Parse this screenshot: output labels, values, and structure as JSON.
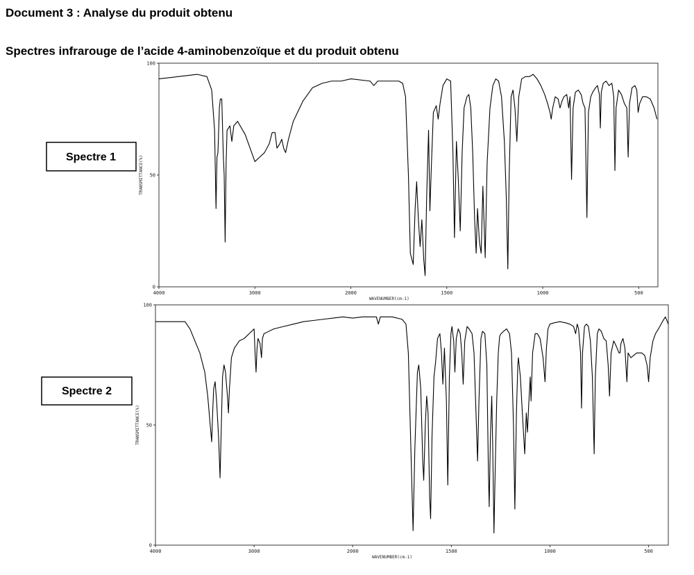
{
  "header": {
    "title": "Document 3 : Analyse du produit obtenu",
    "subtitle": "Spectres infrarouge de l’acide 4-aminobenzoïque et du produit obtenu"
  },
  "chart_data": [
    {
      "type": "line",
      "label": "Spectre 1",
      "xlabel": "WAVENUMBER(cm-1)",
      "ylabel": "TRANSMITTANCE(%)",
      "color": "#000000",
      "xlim": [
        4000,
        400
      ],
      "x_scale_break": 2000,
      "xticks": [
        4000,
        3000,
        2000,
        1500,
        1000,
        500
      ],
      "ylim": [
        0,
        100
      ],
      "yticks": [
        0,
        50,
        100
      ],
      "x": [
        4000,
        3800,
        3600,
        3500,
        3450,
        3420,
        3405,
        3395,
        3385,
        3370,
        3360,
        3345,
        3330,
        3320,
        3310,
        3300,
        3290,
        3260,
        3240,
        3220,
        3180,
        3100,
        3000,
        2950,
        2900,
        2850,
        2820,
        2790,
        2770,
        2740,
        2720,
        2700,
        2680,
        2650,
        2600,
        2500,
        2400,
        2300,
        2200,
        2100,
        2000,
        1900,
        1880,
        1860,
        1800,
        1750,
        1730,
        1715,
        1700,
        1690,
        1675,
        1665,
        1657,
        1648,
        1639,
        1630,
        1620,
        1613,
        1605,
        1595,
        1588,
        1580,
        1570,
        1555,
        1545,
        1535,
        1520,
        1500,
        1480,
        1468,
        1460,
        1450,
        1440,
        1430,
        1420,
        1410,
        1395,
        1385,
        1375,
        1365,
        1355,
        1347,
        1340,
        1330,
        1321,
        1312,
        1300,
        1290,
        1275,
        1260,
        1245,
        1230,
        1215,
        1200,
        1190,
        1182,
        1175,
        1165,
        1155,
        1145,
        1135,
        1125,
        1110,
        1090,
        1070,
        1050,
        1030,
        1010,
        990,
        975,
        962,
        956,
        948,
        935,
        920,
        910,
        900,
        890,
        875,
        865,
        858,
        850,
        842,
        830,
        815,
        800,
        790,
        780,
        770,
        762,
        750,
        740,
        725,
        715,
        705,
        700,
        695,
        685,
        670,
        655,
        640,
        630,
        624,
        618,
        605,
        590,
        575,
        562,
        555,
        548,
        535,
        520,
        510,
        503,
        495,
        480,
        460,
        440,
        420,
        405
      ],
      "values": [
        93,
        94,
        95,
        94,
        88,
        70,
        35,
        58,
        60,
        80,
        84,
        84,
        60,
        50,
        20,
        55,
        70,
        72,
        65,
        72,
        74,
        68,
        56,
        58,
        60,
        64,
        69,
        69,
        62,
        64,
        66,
        62,
        60,
        66,
        74,
        83,
        89,
        91,
        92,
        92,
        93,
        92,
        90,
        92,
        92,
        92,
        91,
        85,
        50,
        15,
        10,
        35,
        47,
        30,
        18,
        30,
        12,
        5,
        40,
        70,
        34,
        55,
        78,
        81,
        75,
        82,
        90,
        93,
        92,
        60,
        22,
        65,
        48,
        25,
        60,
        80,
        85,
        86,
        80,
        60,
        30,
        15,
        35,
        20,
        15,
        45,
        13,
        55,
        80,
        90,
        93,
        92,
        85,
        65,
        40,
        8,
        50,
        85,
        88,
        80,
        65,
        85,
        93,
        94,
        94,
        95,
        93,
        90,
        86,
        82,
        78,
        75,
        80,
        85,
        84,
        80,
        83,
        85,
        86,
        80,
        85,
        48,
        80,
        87,
        88,
        86,
        82,
        80,
        31,
        78,
        85,
        87,
        89,
        90,
        86,
        71,
        87,
        91,
        92,
        90,
        91,
        85,
        52,
        80,
        88,
        86,
        82,
        80,
        58,
        82,
        89,
        90,
        88,
        78,
        82,
        85,
        85,
        84,
        80,
        75
      ]
    },
    {
      "type": "line",
      "label": "Spectre 2",
      "xlabel": "WAVENUMBER(cm-1)",
      "ylabel": "TRANSMITTANCE(%)",
      "color": "#000000",
      "xlim": [
        4000,
        400
      ],
      "x_scale_break": 2000,
      "xticks": [
        4000,
        3000,
        2000,
        1500,
        1000,
        500
      ],
      "ylim": [
        0,
        100
      ],
      "yticks": [
        0,
        50,
        100
      ],
      "x": [
        4000,
        3800,
        3700,
        3650,
        3600,
        3550,
        3500,
        3470,
        3445,
        3430,
        3420,
        3410,
        3395,
        3380,
        3360,
        3345,
        3335,
        3320,
        3305,
        3290,
        3270,
        3260,
        3250,
        3230,
        3200,
        3150,
        3100,
        3050,
        3000,
        2990,
        2980,
        2970,
        2960,
        2940,
        2925,
        2915,
        2900,
        2850,
        2800,
        2700,
        2600,
        2500,
        2400,
        2300,
        2200,
        2100,
        2000,
        1950,
        1880,
        1870,
        1860,
        1800,
        1750,
        1730,
        1718,
        1705,
        1694,
        1685,
        1672,
        1665,
        1655,
        1645,
        1640,
        1632,
        1625,
        1618,
        1610,
        1605,
        1598,
        1588,
        1580,
        1570,
        1558,
        1550,
        1543,
        1535,
        1525,
        1518,
        1510,
        1502,
        1497,
        1488,
        1482,
        1475,
        1465,
        1455,
        1447,
        1440,
        1432,
        1420,
        1410,
        1395,
        1385,
        1375,
        1367,
        1360,
        1350,
        1342,
        1330,
        1320,
        1312,
        1308,
        1302,
        1295,
        1290,
        1284,
        1278,
        1270,
        1262,
        1255,
        1248,
        1235,
        1220,
        1205,
        1195,
        1185,
        1178,
        1170,
        1163,
        1160,
        1150,
        1140,
        1128,
        1120,
        1114,
        1108,
        1100,
        1096,
        1088,
        1075,
        1064,
        1050,
        1035,
        1025,
        1018,
        1010,
        1000,
        980,
        950,
        920,
        900,
        880,
        870,
        862,
        855,
        845,
        840,
        835,
        825,
        815,
        805,
        795,
        785,
        776,
        770,
        760,
        752,
        740,
        727,
        715,
        705,
        698,
        690,
        677,
        665,
        650,
        645,
        640,
        630,
        620,
        610,
        604,
        590,
        575,
        560,
        550,
        535,
        520,
        508,
        500,
        492,
        478,
        465,
        450,
        430,
        415,
        405,
        400
      ],
      "values": [
        93,
        93,
        93,
        90,
        85,
        80,
        72,
        62,
        50,
        43,
        55,
        65,
        68,
        60,
        45,
        28,
        45,
        70,
        75,
        72,
        62,
        55,
        65,
        78,
        82,
        85,
        86,
        88,
        90,
        80,
        72,
        82,
        86,
        84,
        78,
        86,
        88,
        89,
        90,
        91,
        92,
        93,
        93.5,
        94,
        94.5,
        95,
        94.5,
        95,
        95,
        92,
        95,
        95,
        94,
        92,
        80,
        40,
        6,
        40,
        72,
        75,
        65,
        35,
        27,
        50,
        62,
        55,
        20,
        11,
        45,
        70,
        76,
        86,
        88,
        80,
        67,
        82,
        60,
        25,
        70,
        88,
        91,
        85,
        72,
        86,
        90,
        88,
        80,
        67,
        85,
        91,
        90,
        88,
        80,
        55,
        35,
        60,
        86,
        89,
        88,
        75,
        30,
        16,
        45,
        62,
        40,
        5,
        30,
        60,
        80,
        87,
        88,
        89,
        90,
        88,
        80,
        50,
        15,
        55,
        75,
        78,
        70,
        55,
        38,
        55,
        47,
        58,
        70,
        60,
        80,
        88,
        88,
        86,
        78,
        68,
        82,
        90,
        92,
        92.5,
        93,
        92.5,
        92,
        91,
        88,
        92,
        90,
        80,
        57,
        80,
        91,
        92,
        91,
        85,
        70,
        38,
        70,
        88,
        90,
        89,
        86,
        85,
        75,
        62,
        80,
        85,
        83,
        80,
        80,
        84,
        86,
        82,
        68,
        80,
        78,
        79,
        80,
        80,
        80,
        79,
        75,
        68,
        78,
        85,
        88,
        90,
        93,
        95,
        93,
        92
      ]
    }
  ]
}
